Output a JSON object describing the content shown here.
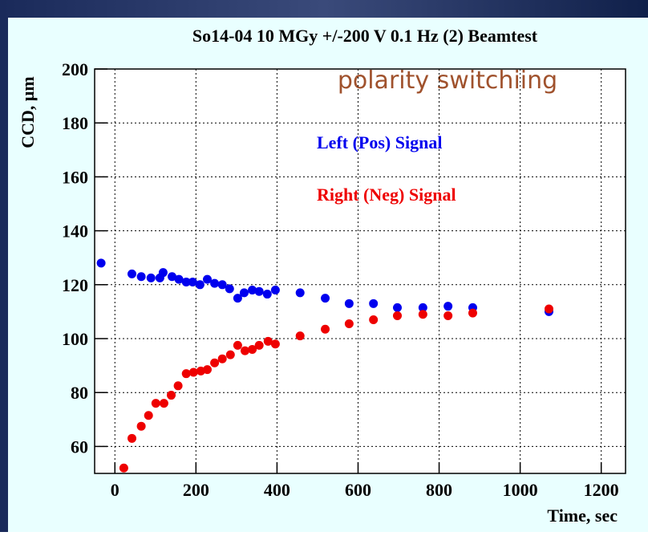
{
  "chart_data": {
    "type": "scatter",
    "title": "So14-04  10 MGy  +/-200 V 0.1 Hz (2) Beamtest",
    "x_label": "Time, sec",
    "y_label": "CCD, μm",
    "annotation": "polarity switchiing",
    "xlim": [
      -50,
      1260
    ],
    "ylim": [
      50,
      200
    ],
    "xticks": [
      0,
      200,
      400,
      600,
      800,
      1000,
      1200
    ],
    "yticks": [
      60,
      80,
      100,
      120,
      140,
      160,
      180,
      200
    ],
    "grid": true,
    "series": [
      {
        "name": "Left (Pos) Signal",
        "color": "#0000ee",
        "x": [
          -34,
          42,
          65,
          89,
          111,
          119,
          141,
          158,
          176,
          192,
          210,
          228,
          246,
          265,
          283,
          303,
          319,
          339,
          356,
          376,
          396,
          457,
          519,
          578,
          638,
          697,
          760,
          822,
          883,
          1071
        ],
        "values": [
          128,
          124,
          123,
          122.5,
          122.5,
          124.5,
          123,
          122,
          121,
          121,
          120,
          122,
          120.5,
          120,
          118.5,
          115,
          117,
          118,
          117.5,
          116.5,
          118,
          117,
          115,
          113,
          113,
          111.5,
          111.5,
          112,
          111.5,
          110
        ]
      },
      {
        "name": "Right (Neg) Signal",
        "color": "#ee0000",
        "x": [
          22,
          42,
          65,
          83,
          101,
          121,
          139,
          156,
          176,
          194,
          212,
          228,
          246,
          265,
          285,
          303,
          321,
          339,
          356,
          378,
          396,
          457,
          519,
          578,
          638,
          697,
          760,
          822,
          883,
          1071
        ],
        "values": [
          52,
          63,
          67.5,
          71.5,
          76,
          76,
          79,
          82.5,
          87,
          87.5,
          88,
          88.5,
          91,
          92.5,
          94,
          97.5,
          95.5,
          96,
          97.5,
          99,
          98,
          101,
          103.5,
          105.5,
          107,
          108.5,
          109,
          108.5,
          109.5,
          111
        ]
      }
    ]
  }
}
